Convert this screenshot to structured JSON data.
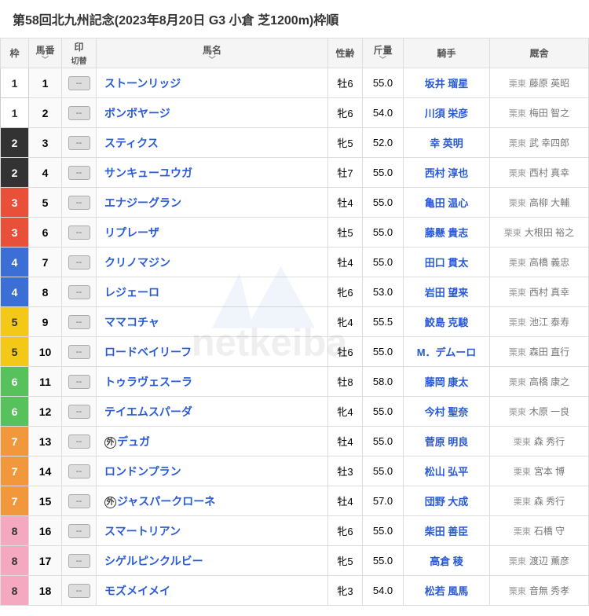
{
  "title": "第58回北九州記念(2023年8月20日 G3 小倉 芝1200m)枠順",
  "headers": {
    "waku": "枠",
    "umaban": "馬番",
    "umaban_sub": "",
    "in": "印",
    "in_sub": "切替",
    "name": "馬名",
    "sei": "性齢",
    "wt": "斤量",
    "jockey": "騎手",
    "trainer": "厩舎"
  },
  "mark_placeholder": "--",
  "waku_colors": {
    "1": {
      "bg": "#ffffff",
      "fg": "#333333",
      "border": "#cccccc"
    },
    "2": {
      "bg": "#333333",
      "fg": "#ffffff"
    },
    "3": {
      "bg": "#e8503a",
      "fg": "#ffffff"
    },
    "4": {
      "bg": "#3b6fd6",
      "fg": "#ffffff"
    },
    "5": {
      "bg": "#f3c817",
      "fg": "#333333"
    },
    "6": {
      "bg": "#57c15b",
      "fg": "#ffffff"
    },
    "7": {
      "bg": "#f1983c",
      "fg": "#ffffff"
    },
    "8": {
      "bg": "#f4a9c0",
      "fg": "#333333"
    }
  },
  "trainer_prefix": "栗東",
  "entries": [
    {
      "waku": "1",
      "no": "1",
      "name": "ストーンリッジ",
      "sei": "牡6",
      "wt": "55.0",
      "jockey": "坂井 瑠星",
      "trainer": "藤原 英昭",
      "gai": false
    },
    {
      "waku": "1",
      "no": "2",
      "name": "ボンボヤージ",
      "sei": "牝6",
      "wt": "54.0",
      "jockey": "川須 栄彦",
      "trainer": "梅田 智之",
      "gai": false
    },
    {
      "waku": "2",
      "no": "3",
      "name": "スティクス",
      "sei": "牝5",
      "wt": "52.0",
      "jockey": "幸 英明",
      "trainer": "武 幸四郎",
      "gai": false
    },
    {
      "waku": "2",
      "no": "4",
      "name": "サンキューユウガ",
      "sei": "牡7",
      "wt": "55.0",
      "jockey": "西村 淳也",
      "trainer": "西村 真幸",
      "gai": false
    },
    {
      "waku": "3",
      "no": "5",
      "name": "エナジーグラン",
      "sei": "牡4",
      "wt": "55.0",
      "jockey": "亀田 温心",
      "trainer": "高柳 大輔",
      "gai": false
    },
    {
      "waku": "3",
      "no": "6",
      "name": "リプレーザ",
      "sei": "牡5",
      "wt": "55.0",
      "jockey": "藤懸 貴志",
      "trainer": "大根田 裕之",
      "gai": false
    },
    {
      "waku": "4",
      "no": "7",
      "name": "クリノマジン",
      "sei": "牡4",
      "wt": "55.0",
      "jockey": "田口 貫太",
      "trainer": "高橋 義忠",
      "gai": false
    },
    {
      "waku": "4",
      "no": "8",
      "name": "レジェーロ",
      "sei": "牝6",
      "wt": "53.0",
      "jockey": "岩田 望来",
      "trainer": "西村 真幸",
      "gai": false
    },
    {
      "waku": "5",
      "no": "9",
      "name": "ママコチャ",
      "sei": "牝4",
      "wt": "55.5",
      "jockey": "鮫島 克駿",
      "trainer": "池江 泰寿",
      "gai": false
    },
    {
      "waku": "5",
      "no": "10",
      "name": "ロードベイリーフ",
      "sei": "牡6",
      "wt": "55.0",
      "jockey": "M．デムーロ",
      "trainer": "森田 直行",
      "gai": false
    },
    {
      "waku": "6",
      "no": "11",
      "name": "トゥラヴェスーラ",
      "sei": "牡8",
      "wt": "58.0",
      "jockey": "藤岡 康太",
      "trainer": "高橋 康之",
      "gai": false
    },
    {
      "waku": "6",
      "no": "12",
      "name": "テイエムスパーダ",
      "sei": "牝4",
      "wt": "55.0",
      "jockey": "今村 聖奈",
      "trainer": "木原 一良",
      "gai": false
    },
    {
      "waku": "7",
      "no": "13",
      "name": "デュガ",
      "sei": "牡4",
      "wt": "55.0",
      "jockey": "菅原 明良",
      "trainer": "森 秀行",
      "gai": true
    },
    {
      "waku": "7",
      "no": "14",
      "name": "ロンドンプラン",
      "sei": "牡3",
      "wt": "55.0",
      "jockey": "松山 弘平",
      "trainer": "宮本 博",
      "gai": false
    },
    {
      "waku": "7",
      "no": "15",
      "name": "ジャスパークローネ",
      "sei": "牡4",
      "wt": "57.0",
      "jockey": "団野 大成",
      "trainer": "森 秀行",
      "gai": true
    },
    {
      "waku": "8",
      "no": "16",
      "name": "スマートリアン",
      "sei": "牝6",
      "wt": "55.0",
      "jockey": "柴田 善臣",
      "trainer": "石橋 守",
      "gai": false
    },
    {
      "waku": "8",
      "no": "17",
      "name": "シゲルピンクルビー",
      "sei": "牝5",
      "wt": "55.0",
      "jockey": "高倉 稜",
      "trainer": "渡辺 薫彦",
      "gai": false
    },
    {
      "waku": "8",
      "no": "18",
      "name": "モズメイメイ",
      "sei": "牝3",
      "wt": "54.0",
      "jockey": "松若 風馬",
      "trainer": "音無 秀孝",
      "gai": false
    }
  ],
  "watermark_text": "netkeiba",
  "gai_label": "外",
  "chevron": "﹀"
}
